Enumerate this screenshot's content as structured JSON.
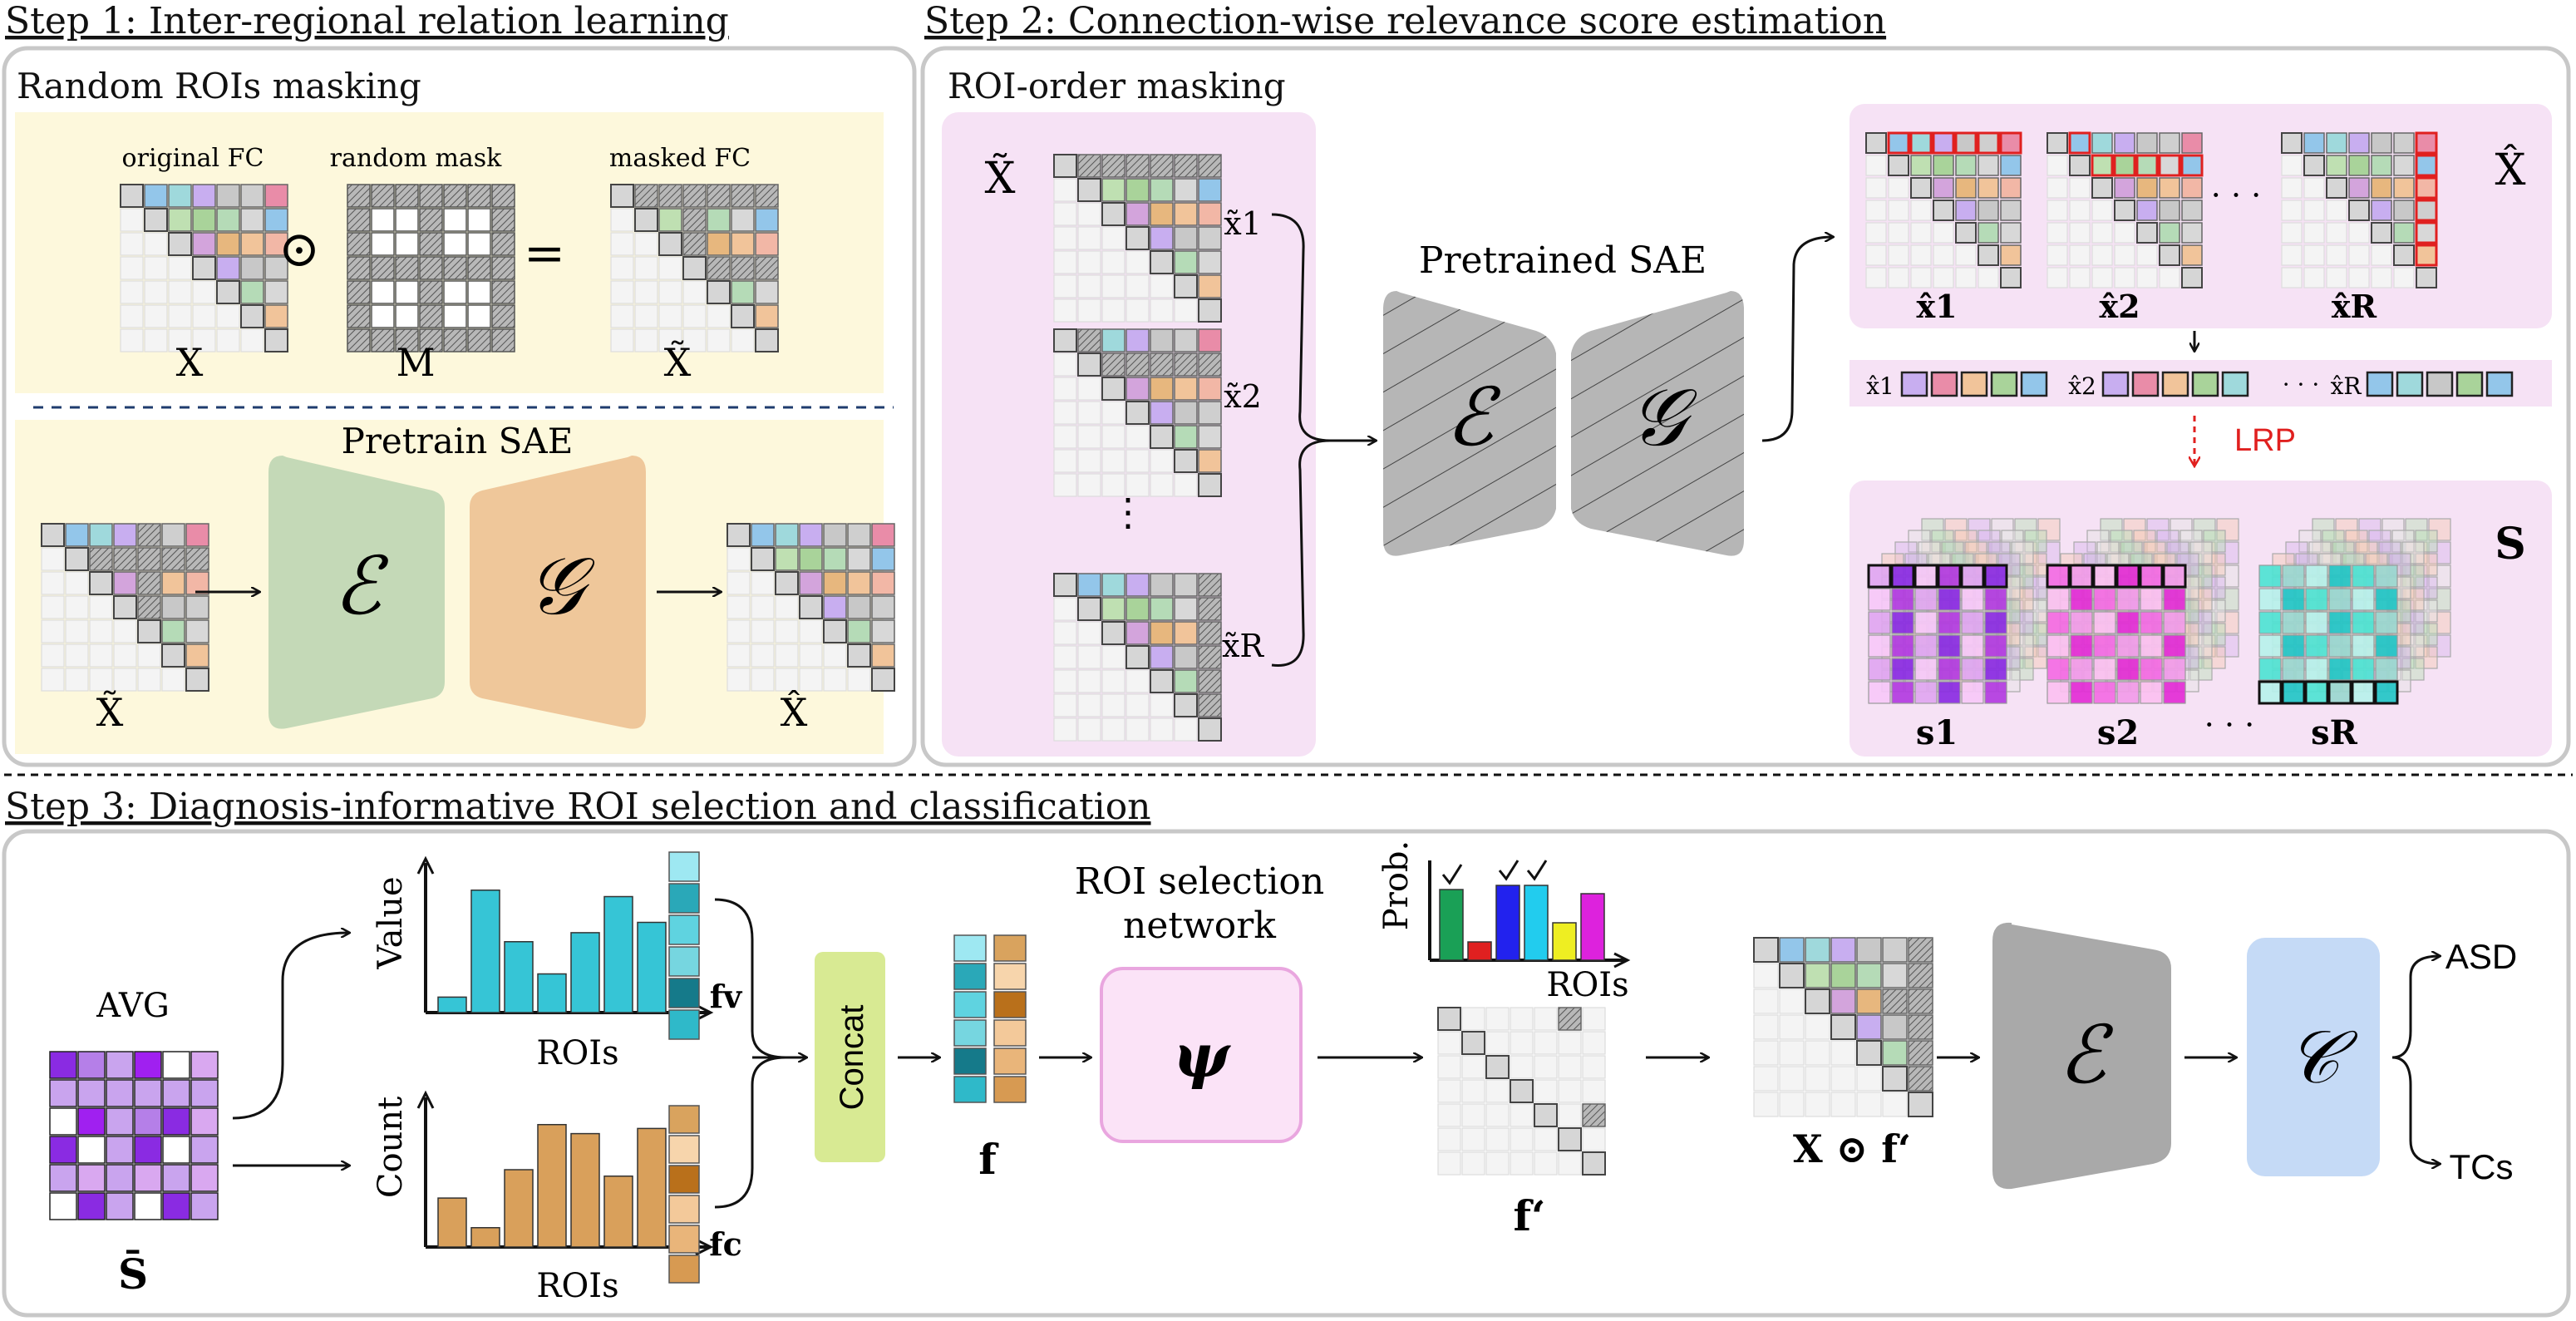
{
  "step1": {
    "title": "Step 1: Inter-regional relation learning",
    "masking_title": "Random ROIs masking",
    "label_original": "original FC",
    "label_random_mask": "random mask",
    "label_masked": "masked FC",
    "sym_x": "X",
    "sym_odot": "⊙",
    "sym_m": "M",
    "sym_eq": "=",
    "sym_xtilde": "X̃",
    "pretrain_title": "Pretrain SAE",
    "enc": "ℰ",
    "dec": "𝒢",
    "in_label": "X̃",
    "out_label": "X̂"
  },
  "step2": {
    "title": "Step 2: Connection-wise relevance score estimation",
    "roi_title": "ROI-order masking",
    "xtilde": "X̃",
    "rows": [
      "x̃1",
      "x̃2",
      "⋮",
      "x̃R"
    ],
    "sae_title": "Pretrained SAE",
    "enc": "ℰ",
    "dec": "𝒢",
    "xhat": "X̂",
    "xhat_labels": [
      "x̂1",
      "x̂2",
      "x̂R"
    ],
    "dots": "· · ·",
    "vec_labels": [
      "x̂1",
      "x̂2",
      "x̂R"
    ],
    "lrp": "LRP",
    "s": "S",
    "s_labels": [
      "s1",
      "s2",
      "sR"
    ]
  },
  "step3": {
    "title": "Step 3: Diagnosis-informative ROI selection and classification",
    "avg": "AVG",
    "sbar": "S̄",
    "value_chart": {
      "ylabel": "Value",
      "xlabel": "ROIs",
      "values": [
        0.12,
        0.95,
        0.55,
        0.3,
        0.62,
        0.9,
        0.7
      ],
      "color": "#36c5d6"
    },
    "count_chart": {
      "ylabel": "Count",
      "xlabel": "ROIs",
      "values": [
        0.38,
        0.15,
        0.6,
        0.95,
        0.88,
        0.55,
        0.92
      ],
      "color": "#d9a05b"
    },
    "fv": "fv",
    "fc": "fc",
    "concat": "Concat",
    "f": "f",
    "selnet_title_1": "ROI selection",
    "selnet_title_2": "network",
    "psi": "ψ",
    "prob_chart": {
      "ylabel": "Prob.",
      "xlabel": "ROIs",
      "values": [
        0.85,
        0.22,
        0.9,
        0.9,
        0.45,
        0.8
      ],
      "colors": [
        "#1aa056",
        "#e02020",
        "#2222ee",
        "#22ccee",
        "#eeee22",
        "#dd22dd"
      ],
      "checked": [
        0,
        2,
        3
      ]
    },
    "fprime": "f‘",
    "xf": "X ⊙ f‘",
    "enc": "ℰ",
    "cls": "𝒞",
    "out1": "ASD",
    "out2": "TCs"
  },
  "colors": {
    "panel_yellow": "#fdf8dc",
    "panel_pink": "#f6e2f5",
    "enc_green": "#c4d9b7",
    "dec_orange": "#efc79a",
    "concat_green": "#d8ea93",
    "cls_blue": "#c5daf6",
    "lrp_red": "#e0201f",
    "purple": "#a020f0"
  }
}
